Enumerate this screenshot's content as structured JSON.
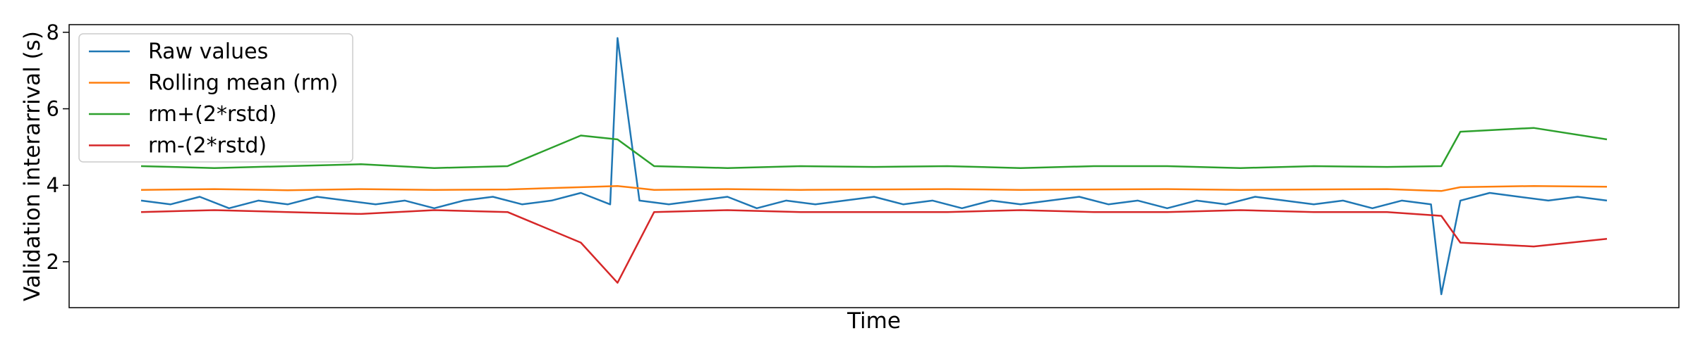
{
  "chart_data": {
    "type": "line",
    "title": "",
    "xlabel": "Time",
    "ylabel": "Validation interarrival (s)",
    "ylim": [
      0.8,
      8.2
    ],
    "yticks": [
      2,
      4,
      6,
      8
    ],
    "xticks": [],
    "grid": false,
    "legend_position": "top-left",
    "series": [
      {
        "name": "Raw values",
        "color": "#1f77b4",
        "x": [
          0,
          2,
          4,
          6,
          8,
          10,
          12,
          14,
          16,
          18,
          20,
          22,
          24,
          26,
          28,
          30,
          32,
          32.5,
          34,
          36,
          38,
          40,
          42,
          44,
          46,
          48,
          50,
          52,
          54,
          56,
          58,
          60,
          62,
          64,
          66,
          68,
          70,
          72,
          74,
          76,
          78,
          80,
          82,
          84,
          86,
          88,
          88.7,
          90,
          92,
          94,
          96,
          98,
          100
        ],
        "y": [
          3.6,
          3.5,
          3.7,
          3.4,
          3.6,
          3.5,
          3.7,
          3.6,
          3.5,
          3.6,
          3.4,
          3.6,
          3.7,
          3.5,
          3.6,
          3.8,
          3.5,
          7.85,
          3.6,
          3.5,
          3.6,
          3.7,
          3.4,
          3.6,
          3.5,
          3.6,
          3.7,
          3.5,
          3.6,
          3.4,
          3.6,
          3.5,
          3.6,
          3.7,
          3.5,
          3.6,
          3.4,
          3.6,
          3.5,
          3.7,
          3.6,
          3.5,
          3.6,
          3.4,
          3.6,
          3.5,
          1.15,
          3.6,
          3.8,
          3.7,
          3.6,
          3.7,
          3.6
        ]
      },
      {
        "name": "Rolling mean (rm)",
        "color": "#ff7f0e",
        "x": [
          0,
          5,
          10,
          15,
          20,
          25,
          30,
          32.5,
          35,
          40,
          45,
          50,
          55,
          60,
          65,
          70,
          75,
          80,
          85,
          88.7,
          90,
          95,
          100
        ],
        "y": [
          3.88,
          3.9,
          3.87,
          3.9,
          3.88,
          3.89,
          3.95,
          3.98,
          3.88,
          3.9,
          3.88,
          3.89,
          3.9,
          3.88,
          3.89,
          3.9,
          3.88,
          3.89,
          3.9,
          3.85,
          3.95,
          3.98,
          3.96
        ]
      },
      {
        "name": "rm+(2*rstd)",
        "color": "#2ca02c",
        "x": [
          0,
          5,
          10,
          15,
          20,
          25,
          30,
          32.5,
          35,
          40,
          45,
          50,
          55,
          60,
          65,
          70,
          75,
          80,
          85,
          88.7,
          90,
          95,
          100
        ],
        "y": [
          4.5,
          4.45,
          4.5,
          4.55,
          4.45,
          4.5,
          5.3,
          5.2,
          4.5,
          4.45,
          4.5,
          4.48,
          4.5,
          4.45,
          4.5,
          4.5,
          4.45,
          4.5,
          4.48,
          4.5,
          5.4,
          5.5,
          5.2
        ]
      },
      {
        "name": "rm-(2*rstd)",
        "color": "#d62728",
        "x": [
          0,
          5,
          10,
          15,
          20,
          25,
          30,
          32.5,
          35,
          40,
          45,
          50,
          55,
          60,
          65,
          70,
          75,
          80,
          85,
          88.7,
          90,
          95,
          100
        ],
        "y": [
          3.3,
          3.35,
          3.3,
          3.25,
          3.35,
          3.3,
          2.5,
          1.45,
          3.3,
          3.35,
          3.3,
          3.3,
          3.3,
          3.35,
          3.3,
          3.3,
          3.35,
          3.3,
          3.3,
          3.2,
          2.5,
          2.4,
          2.6
        ]
      }
    ]
  }
}
